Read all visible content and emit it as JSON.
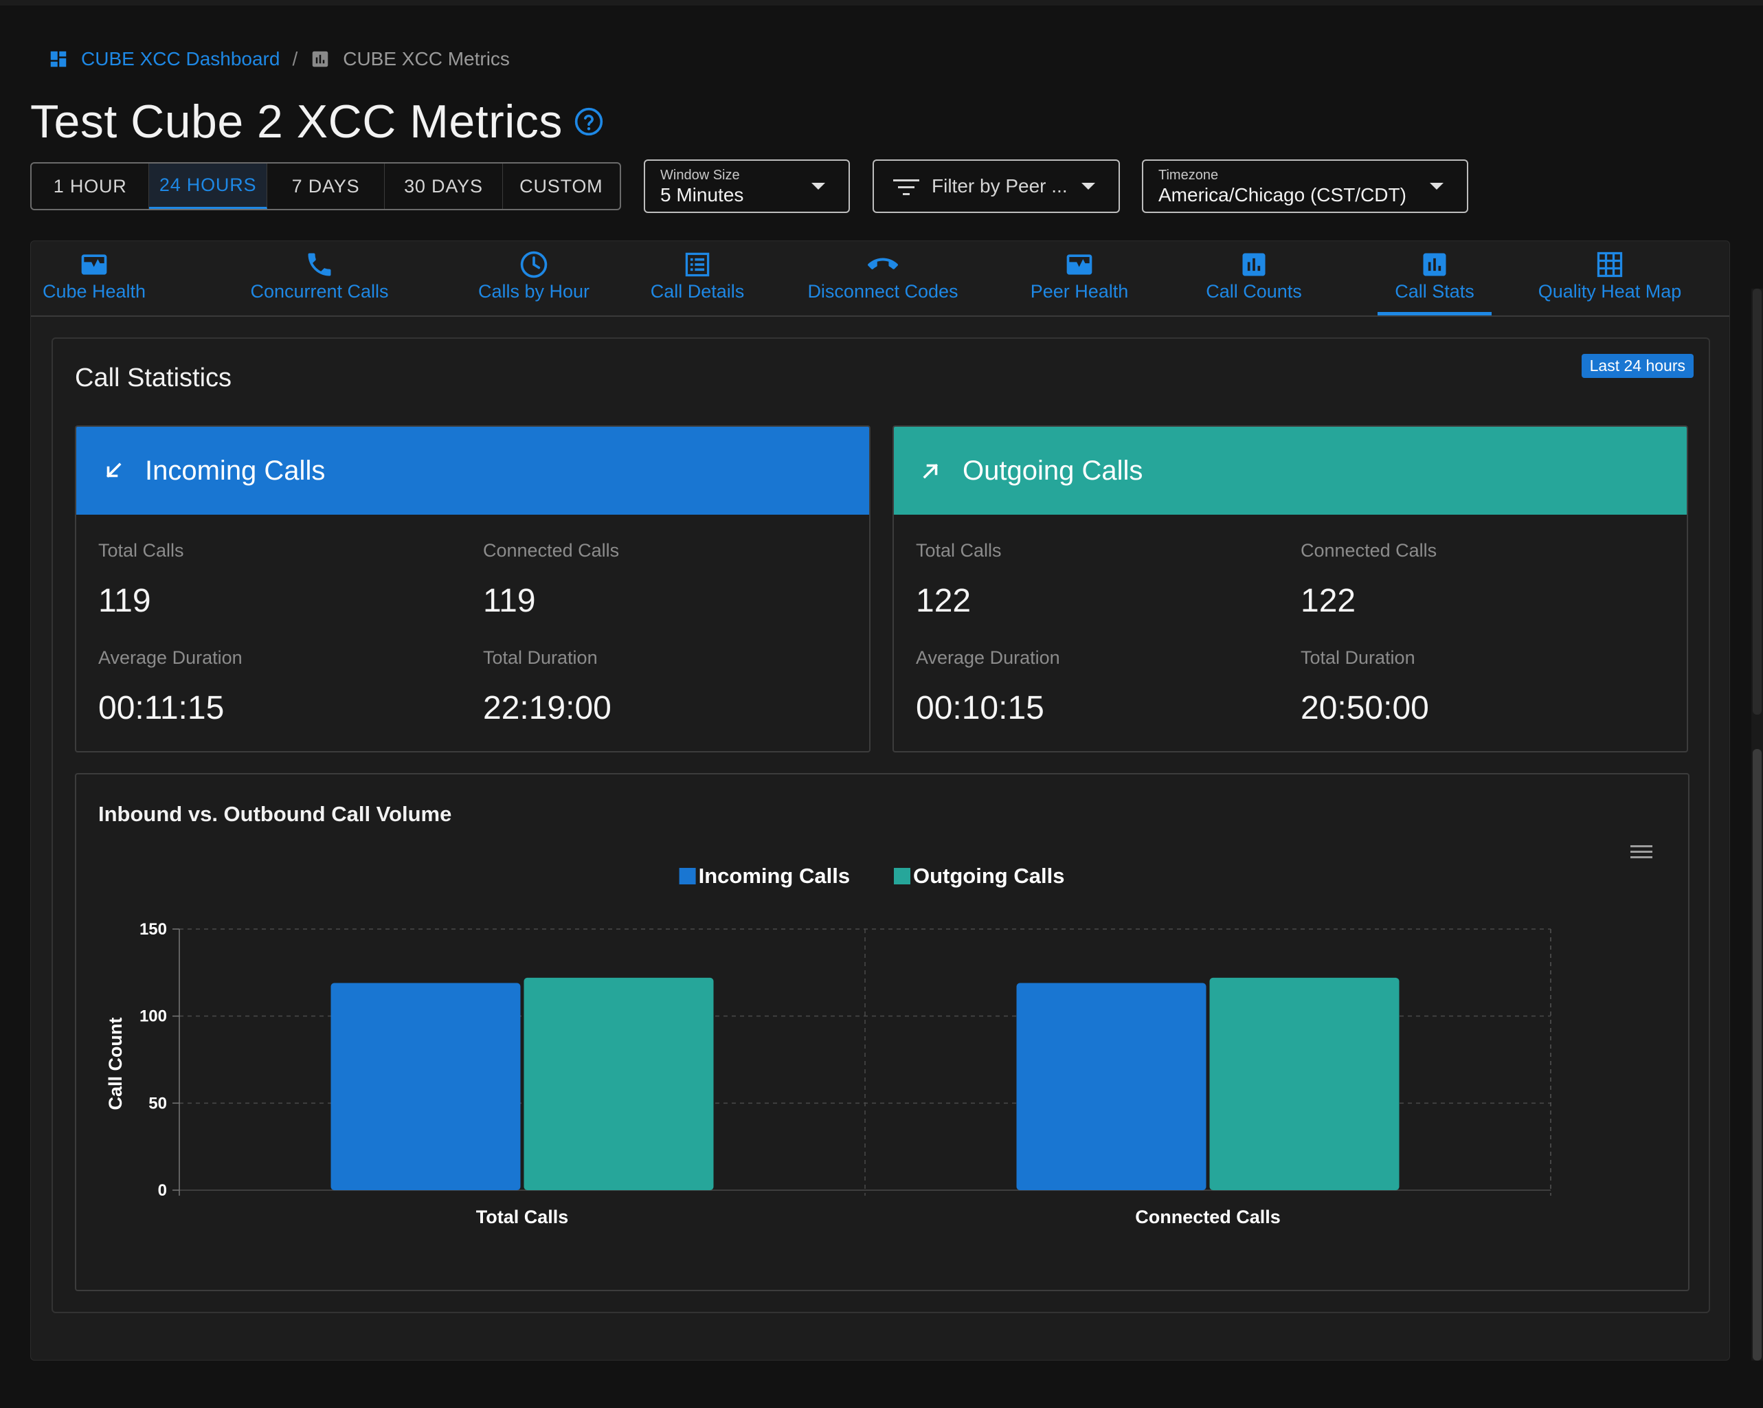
{
  "breadcrumb": {
    "dashboard_label": "CUBE XCC Dashboard",
    "separator": "/",
    "current_label": "CUBE XCC Metrics"
  },
  "page": {
    "title": "Test Cube 2 XCC Metrics"
  },
  "time_range": {
    "options": [
      "1 HOUR",
      "24 HOURS",
      "7 DAYS",
      "30 DAYS",
      "CUSTOM"
    ],
    "selected": "24 HOURS"
  },
  "window_size": {
    "label": "Window Size",
    "value": "5 Minutes"
  },
  "peer_filter": {
    "placeholder": "Filter by Peer ..."
  },
  "timezone": {
    "label": "Timezone",
    "value": "America/Chicago (CST/CDT)"
  },
  "tabs": [
    {
      "label": "Cube Health",
      "icon": "monitor-heart-icon"
    },
    {
      "label": "Concurrent Calls",
      "icon": "phone-icon"
    },
    {
      "label": "Calls by Hour",
      "icon": "clock-icon"
    },
    {
      "label": "Call Details",
      "icon": "list-icon"
    },
    {
      "label": "Disconnect Codes",
      "icon": "call-end-icon"
    },
    {
      "label": "Peer Health",
      "icon": "monitor-heart-icon"
    },
    {
      "label": "Call Counts",
      "icon": "bar-chart-icon"
    },
    {
      "label": "Call Stats",
      "icon": "bar-chart-icon"
    },
    {
      "label": "Quality Heat Map",
      "icon": "grid-icon"
    }
  ],
  "active_tab": "Call Stats",
  "stats": {
    "title": "Call Statistics",
    "badge": "Last 24 hours",
    "incoming": {
      "title": "Incoming Calls",
      "color": "#1976d2",
      "total_calls_label": "Total Calls",
      "total_calls": "119",
      "connected_calls_label": "Connected Calls",
      "connected_calls": "119",
      "avg_duration_label": "Average Duration",
      "avg_duration": "00:11:15",
      "total_duration_label": "Total Duration",
      "total_duration": "22:19:00"
    },
    "outgoing": {
      "title": "Outgoing Calls",
      "color": "#26a69a",
      "total_calls_label": "Total Calls",
      "total_calls": "122",
      "connected_calls_label": "Connected Calls",
      "connected_calls": "122",
      "avg_duration_label": "Average Duration",
      "avg_duration": "00:10:15",
      "total_duration_label": "Total Duration",
      "total_duration": "20:50:00"
    }
  },
  "chart_data": {
    "type": "bar",
    "title": "Inbound vs. Outbound Call Volume",
    "categories": [
      "Total Calls",
      "Connected Calls"
    ],
    "series": [
      {
        "name": "Incoming Calls",
        "values": [
          119,
          119
        ],
        "color": "#1976d2"
      },
      {
        "name": "Outgoing Calls",
        "values": [
          122,
          122
        ],
        "color": "#26a69a"
      }
    ],
    "xlabel": "",
    "ylabel": "Call Count",
    "ylim": [
      0,
      150
    ],
    "yticks": [
      0,
      50,
      100,
      150
    ],
    "grid": true,
    "legend": "top-center"
  }
}
